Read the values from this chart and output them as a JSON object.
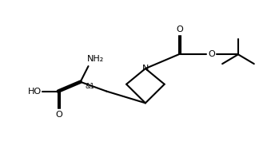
{
  "bg_color": "#ffffff",
  "line_color": "#000000",
  "line_width": 1.5,
  "font_size": 8,
  "figsize": [
    3.39,
    1.77
  ],
  "nh2_label": "NH₂",
  "stereo_label": "&1",
  "ho_label": "HO",
  "o_label": "O",
  "n_label": "N"
}
